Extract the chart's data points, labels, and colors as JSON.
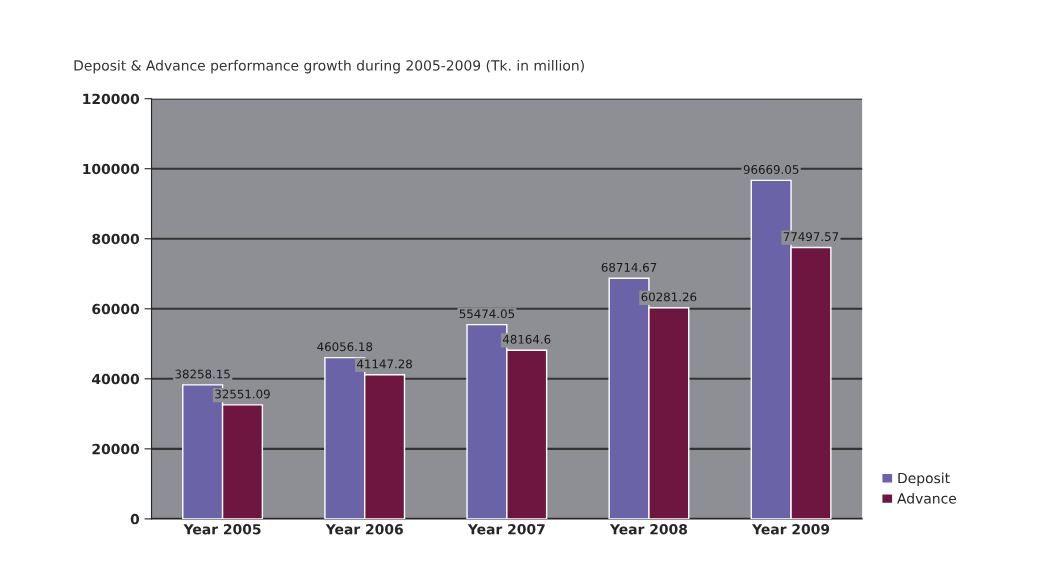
{
  "chart_data": {
    "type": "bar",
    "title": "Deposit & Advance performance growth during 2005-2009 (Tk. in million)",
    "categories": [
      "Year 2005",
      "Year 2006",
      "Year 2007",
      "Year 2008",
      "Year 2009"
    ],
    "series": [
      {
        "name": "Deposit",
        "color": "#6b63a8",
        "values": [
          38258.15,
          46056.18,
          55474.05,
          68714.67,
          96669.05
        ]
      },
      {
        "name": "Advance",
        "color": "#6e1640",
        "values": [
          32551.09,
          41147.28,
          48164.6,
          60281.26,
          77497.57
        ]
      }
    ],
    "ylim": [
      0,
      120000
    ],
    "yticks": [
      0,
      20000,
      40000,
      60000,
      80000,
      100000,
      120000
    ],
    "grid": "y",
    "legend": "bottom right",
    "data_labels": true
  }
}
